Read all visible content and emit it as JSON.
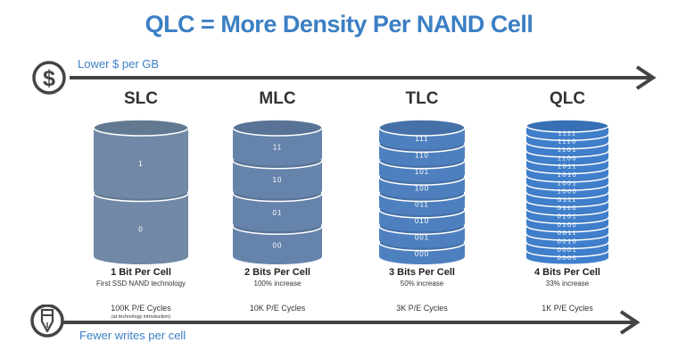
{
  "title": "QLC = More Density Per NAND Cell",
  "top_arrow": {
    "label": "Lower $ per GB",
    "icon": "dollar-icon"
  },
  "bottom_arrow": {
    "label": "Fewer writes per cell",
    "icon": "pen-icon"
  },
  "columns": [
    {
      "name": "SLC",
      "bits_label": "1 Bit Per Cell",
      "subtitle": "First SSD NAND technology",
      "cycles": "100K P/E Cycles",
      "note": "(at technology introduction)",
      "color": "#7189a6",
      "levels": [
        "1",
        "0"
      ]
    },
    {
      "name": "MLC",
      "bits_label": "2 Bits Per Cell",
      "subtitle": "100% increase",
      "cycles": "10K P/E Cycles",
      "color": "#6583ab",
      "levels": [
        "11",
        "10",
        "01",
        "00"
      ]
    },
    {
      "name": "TLC",
      "bits_label": "3 Bits Per Cell",
      "subtitle": "50% increase",
      "cycles": "3K P/E Cycles",
      "color": "#4e80bf",
      "levels": [
        "111",
        "110",
        "101",
        "100",
        "011",
        "010",
        "001",
        "000"
      ]
    },
    {
      "name": "QLC",
      "bits_label": "4 Bits Per Cell",
      "subtitle": "33% increase",
      "cycles": "1K P/E Cycles",
      "color": "#3f7fcc",
      "levels": [
        "1111",
        "1110",
        "1101",
        "1100",
        "1011",
        "1010",
        "1001",
        "1000",
        "0111",
        "0110",
        "0101",
        "0100",
        "0011",
        "0010",
        "0001",
        "0000"
      ]
    }
  ],
  "colors": {
    "accent": "#3b7fc4",
    "arrow": "#444444",
    "text": "#333333"
  }
}
